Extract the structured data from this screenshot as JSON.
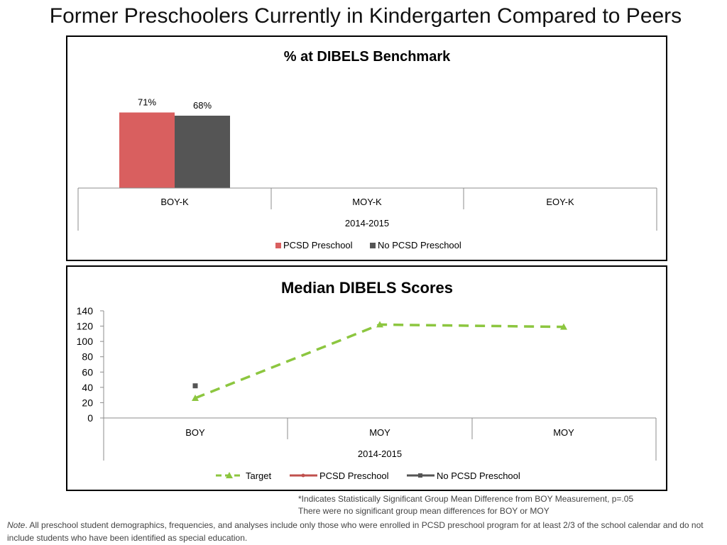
{
  "page": {
    "title": "Former Preschoolers Currently in Kindergarten Compared to Peers",
    "footnote_line1": "*Indicates Statistically Significant Group Mean Difference from BOY Measurement, p=.05",
    "footnote_line2": "There were no significant group mean differences for BOY or MOY",
    "note_label": "Note",
    "note_text": ". All preschool student demographics, frequencies, and analyses include only those who were enrolled in PCSD preschool program for at least 2/3 of the school calendar and do not include students who have been identified as special education."
  },
  "colors": {
    "pcsd": "#d95f5f",
    "no_pcsd": "#555555",
    "target": "#8cc63f"
  },
  "chart_data": [
    {
      "type": "bar",
      "title": "% at DIBELS Benchmark",
      "categories": [
        "BOY-K",
        "MOY-K",
        "EOY-K"
      ],
      "group_label": "2014-2015",
      "series": [
        {
          "name": "PCSD Preschool",
          "values": [
            71,
            null,
            null
          ],
          "labels": [
            "71%",
            "",
            ""
          ]
        },
        {
          "name": "No PCSD Preschool",
          "values": [
            68,
            null,
            null
          ],
          "labels": [
            "68%",
            "",
            ""
          ]
        }
      ],
      "ylim": [
        0,
        100
      ],
      "legend": "bottom"
    },
    {
      "type": "line",
      "title": "Median DIBELS Scores",
      "categories": [
        "BOY",
        "MOY",
        "MOY"
      ],
      "group_label": "2014-2015",
      "yticks": [
        "0",
        "20",
        "40",
        "60",
        "80",
        "100",
        "120",
        "140"
      ],
      "ylim": [
        0,
        140
      ],
      "series": [
        {
          "name": "Target",
          "values": [
            26,
            122,
            119
          ]
        },
        {
          "name": "PCSD Preschool",
          "values": [
            null,
            null,
            null
          ]
        },
        {
          "name": "No PCSD Preschool",
          "values": [
            42,
            null,
            null
          ]
        }
      ],
      "legend": "bottom"
    }
  ]
}
